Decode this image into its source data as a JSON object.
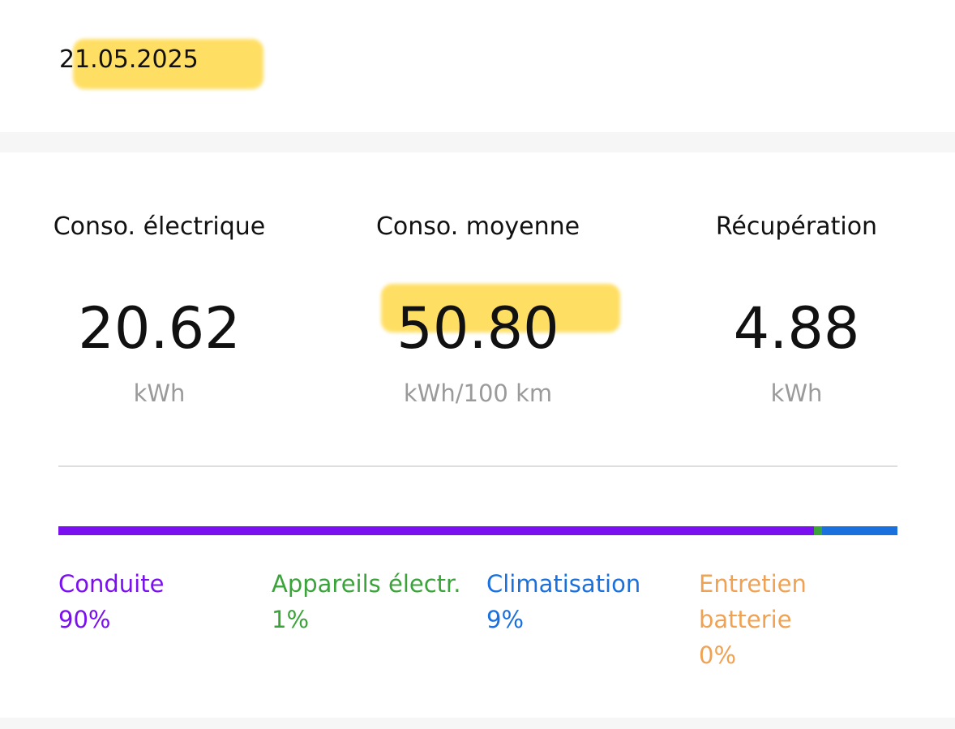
{
  "header": {
    "date": "21.05.2025"
  },
  "stats": [
    {
      "label": "Conso. électrique",
      "value": "20.62",
      "unit": "kWh"
    },
    {
      "label": "Conso. moyenne",
      "value": "50.80",
      "unit": "kWh/100 km"
    },
    {
      "label": "Récupération",
      "value": "4.88",
      "unit": "kWh"
    }
  ],
  "breakdown": {
    "segments": [
      {
        "name": "Conduite",
        "value": 90,
        "value_label": "90%",
        "color": "#7a0ff0"
      },
      {
        "name": "Appareils électr.",
        "value": 1,
        "value_label": "1%",
        "color": "#3aa33a"
      },
      {
        "name": "Climatisation",
        "value": 9,
        "value_label": "9%",
        "color": "#1a70dc"
      },
      {
        "name": "Entretien batterie",
        "value": 0,
        "value_label": "0%",
        "color": "#f0a252"
      }
    ]
  }
}
